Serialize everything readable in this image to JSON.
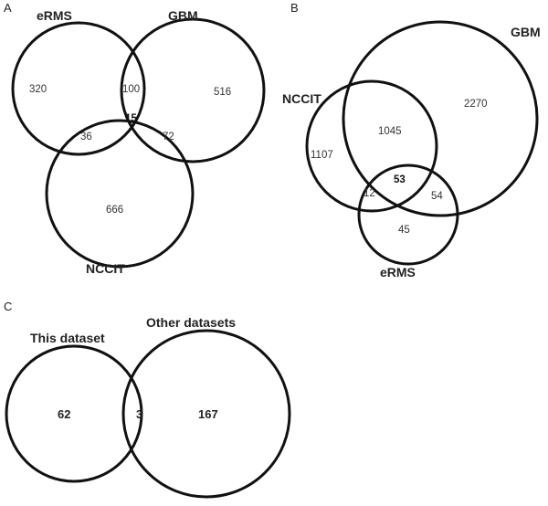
{
  "panel_a": {
    "letter": "A",
    "sets": {
      "ermS": "eRMS",
      "gbm": "GBM",
      "nccit": "NCCIT"
    },
    "regions": {
      "ermS_only": "320",
      "ermS_gbm": "100",
      "gbm_only": "516",
      "all_three": "15",
      "ermS_nccit": "36",
      "gbm_nccit": "72",
      "nccit_only": "666"
    }
  },
  "panel_b": {
    "letter": "B",
    "sets": {
      "gbm": "GBM",
      "nccit": "NCCIT",
      "ermS": "eRMS"
    },
    "regions": {
      "gbm_only": "2270",
      "nccit_gbm": "1045",
      "nccit_only": "1107",
      "all_three": "53",
      "nccit_ermS": "12",
      "gbm_ermS": "54",
      "ermS_only": "45"
    }
  },
  "panel_c": {
    "letter": "C",
    "sets": {
      "this": "This dataset",
      "other": "Other datasets"
    },
    "regions": {
      "this_only": "62",
      "overlap": "3",
      "other_only": "167"
    }
  }
}
